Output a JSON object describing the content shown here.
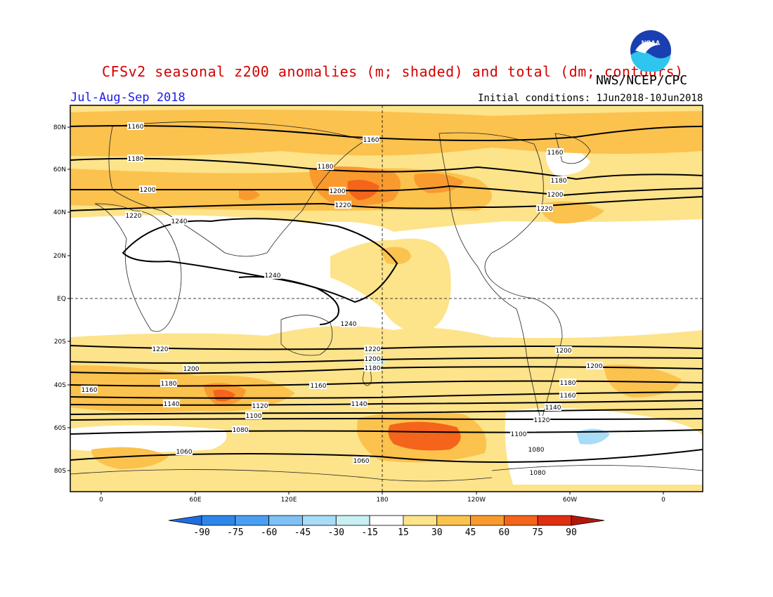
{
  "header": {
    "title": "CFSv2 seasonal z200 anomalies (m; shaded) and total (dm; contours)",
    "agency": "NWS/NCEP/CPC",
    "season": "Jul-Aug-Sep 2018",
    "initial_conditions": "Initial conditions: 1Jun2018-10Jun2018",
    "logo_text": "NOAA"
  },
  "map": {
    "lat_labels": [
      "80N",
      "60N",
      "40N",
      "20N",
      "EQ",
      "20S",
      "40S",
      "60S",
      "80S"
    ],
    "lon_labels": [
      "0",
      "60E",
      "120E",
      "180",
      "120W",
      "60W",
      "0"
    ],
    "contour_labels": [
      "1160",
      "1160",
      "1160",
      "1180",
      "1180",
      "1180",
      "1200",
      "1200",
      "1200",
      "1220",
      "1220",
      "1220",
      "1240",
      "1240",
      "1240",
      "1220",
      "1220",
      "1200",
      "1200",
      "1200",
      "1180",
      "1180",
      "1160",
      "1160",
      "1160",
      "1140",
      "1140",
      "1140",
      "1120",
      "1120",
      "1100",
      "1100",
      "1080",
      "1080",
      "1080",
      "1060",
      "1060",
      "1180",
      "1200",
      "1160"
    ]
  },
  "colorbar": {
    "values": [
      "-90",
      "-75",
      "-60",
      "-45",
      "-30",
      "-15",
      "15",
      "30",
      "45",
      "60",
      "75",
      "90"
    ],
    "colors": [
      "#1e6ee0",
      "#2f86ea",
      "#4a9ff2",
      "#7fc0f6",
      "#a8dcf7",
      "#c8f0f4",
      "#ffffff",
      "#fde38a",
      "#fbc24e",
      "#f99a2f",
      "#f4641a",
      "#e02e10",
      "#b5160c"
    ]
  }
}
